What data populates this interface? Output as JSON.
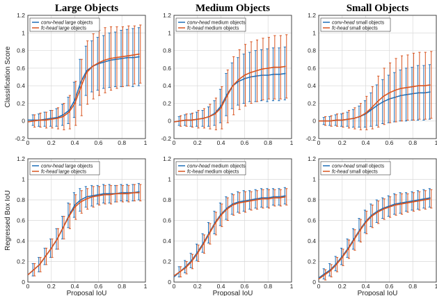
{
  "colors": {
    "conv": "#1f6fb8",
    "fc": "#d9541f"
  },
  "chart_data": [
    {
      "type": "line",
      "title": "Large Objects",
      "xlabel": "",
      "ylabel": "Classification Score",
      "xlim": [
        0,
        1
      ],
      "ylim": [
        -0.2,
        1.2
      ],
      "xticks": [
        "0",
        "0.2",
        "0.4",
        "0.6",
        "0.8",
        "1"
      ],
      "yticks": [
        "-0.2",
        "0",
        "0.2",
        "0.4",
        "0.6",
        "0.8",
        "1",
        "1.2"
      ],
      "legend": "top-left",
      "grid": true,
      "x": [
        0.05,
        0.1,
        0.15,
        0.2,
        0.25,
        0.3,
        0.35,
        0.4,
        0.45,
        0.5,
        0.55,
        0.6,
        0.65,
        0.7,
        0.75,
        0.8,
        0.85,
        0.9,
        0.95
      ],
      "series": [
        {
          "name": "conv-head",
          "desc": "large objects",
          "values": [
            0.01,
            0.01,
            0.02,
            0.03,
            0.04,
            0.07,
            0.12,
            0.24,
            0.44,
            0.57,
            0.62,
            0.65,
            0.67,
            0.69,
            0.7,
            0.71,
            0.72,
            0.72,
            0.73
          ],
          "err": [
            0.06,
            0.07,
            0.08,
            0.09,
            0.1,
            0.12,
            0.15,
            0.2,
            0.26,
            0.28,
            0.29,
            0.3,
            0.3,
            0.31,
            0.31,
            0.32,
            0.32,
            0.33,
            0.33
          ]
        },
        {
          "name": "fc-head",
          "desc": "large objects",
          "values": [
            0.0,
            0.01,
            0.01,
            0.02,
            0.03,
            0.05,
            0.1,
            0.2,
            0.38,
            0.55,
            0.62,
            0.66,
            0.69,
            0.71,
            0.72,
            0.73,
            0.74,
            0.75,
            0.76
          ],
          "err": [
            0.07,
            0.08,
            0.09,
            0.1,
            0.12,
            0.15,
            0.19,
            0.25,
            0.32,
            0.36,
            0.37,
            0.37,
            0.37,
            0.36,
            0.35,
            0.34,
            0.34,
            0.33,
            0.33
          ]
        }
      ]
    },
    {
      "type": "line",
      "title": "Medium Objects",
      "xlabel": "",
      "ylabel": "",
      "xlim": [
        0,
        1
      ],
      "ylim": [
        -0.2,
        1.2
      ],
      "xticks": [
        "0",
        "0.2",
        "0.4",
        "0.6",
        "0.8",
        "1"
      ],
      "yticks": [
        "-0.2",
        "0",
        "0.2",
        "0.4",
        "0.6",
        "0.8",
        "1",
        "1.2"
      ],
      "legend": "top-left",
      "grid": true,
      "x": [
        0.05,
        0.1,
        0.15,
        0.2,
        0.25,
        0.3,
        0.35,
        0.4,
        0.45,
        0.5,
        0.55,
        0.6,
        0.65,
        0.7,
        0.75,
        0.8,
        0.85,
        0.9,
        0.95
      ],
      "series": [
        {
          "name": "conv-head",
          "desc": "medium objects",
          "values": [
            0.0,
            0.01,
            0.01,
            0.02,
            0.03,
            0.05,
            0.09,
            0.17,
            0.3,
            0.4,
            0.45,
            0.48,
            0.5,
            0.51,
            0.52,
            0.52,
            0.53,
            0.53,
            0.54
          ],
          "err": [
            0.05,
            0.06,
            0.07,
            0.08,
            0.09,
            0.11,
            0.14,
            0.19,
            0.24,
            0.26,
            0.27,
            0.28,
            0.28,
            0.29,
            0.29,
            0.3,
            0.3,
            0.3,
            0.3
          ]
        },
        {
          "name": "fc-head",
          "desc": "medium objects",
          "values": [
            0.0,
            0.01,
            0.01,
            0.02,
            0.03,
            0.05,
            0.08,
            0.15,
            0.28,
            0.4,
            0.47,
            0.52,
            0.55,
            0.57,
            0.59,
            0.6,
            0.61,
            0.61,
            0.62
          ],
          "err": [
            0.06,
            0.07,
            0.08,
            0.1,
            0.11,
            0.14,
            0.18,
            0.24,
            0.3,
            0.33,
            0.34,
            0.35,
            0.35,
            0.35,
            0.35,
            0.35,
            0.36,
            0.36,
            0.36
          ]
        }
      ]
    },
    {
      "type": "line",
      "title": "Small Objects",
      "xlabel": "",
      "ylabel": "",
      "xlim": [
        0,
        1
      ],
      "ylim": [
        -0.2,
        1.2
      ],
      "xticks": [
        "0",
        "0.2",
        "0.4",
        "0.6",
        "0.8",
        "1"
      ],
      "yticks": [
        "-0.2",
        "0",
        "0.2",
        "0.4",
        "0.6",
        "0.8",
        "1",
        "1.2"
      ],
      "legend": "top-left",
      "grid": true,
      "x": [
        0.05,
        0.1,
        0.15,
        0.2,
        0.25,
        0.3,
        0.35,
        0.4,
        0.45,
        0.5,
        0.55,
        0.6,
        0.65,
        0.7,
        0.75,
        0.8,
        0.85,
        0.9,
        0.95
      ],
      "series": [
        {
          "name": "conv-head",
          "desc": "small objects",
          "values": [
            0.0,
            0.0,
            0.01,
            0.01,
            0.02,
            0.03,
            0.05,
            0.08,
            0.13,
            0.18,
            0.22,
            0.25,
            0.27,
            0.29,
            0.3,
            0.31,
            0.32,
            0.32,
            0.33
          ],
          "err": [
            0.04,
            0.05,
            0.06,
            0.07,
            0.08,
            0.1,
            0.12,
            0.15,
            0.19,
            0.23,
            0.25,
            0.27,
            0.28,
            0.29,
            0.3,
            0.3,
            0.31,
            0.31,
            0.31
          ]
        },
        {
          "name": "fc-head",
          "desc": "small objects",
          "values": [
            0.0,
            0.0,
            0.01,
            0.01,
            0.02,
            0.03,
            0.05,
            0.09,
            0.15,
            0.22,
            0.28,
            0.32,
            0.35,
            0.37,
            0.38,
            0.39,
            0.4,
            0.4,
            0.41
          ],
          "err": [
            0.05,
            0.06,
            0.07,
            0.08,
            0.1,
            0.12,
            0.15,
            0.19,
            0.24,
            0.29,
            0.32,
            0.34,
            0.36,
            0.37,
            0.37,
            0.38,
            0.38,
            0.38,
            0.38
          ]
        }
      ]
    },
    {
      "type": "line",
      "title": "",
      "xlabel": "Proposal IoU",
      "ylabel": "Regressed Box IoU",
      "xlim": [
        0,
        1
      ],
      "ylim": [
        0,
        1.2
      ],
      "xticks": [
        "0",
        "0.2",
        "0.4",
        "0.6",
        "0.8",
        "1"
      ],
      "yticks": [
        "0",
        "0.2",
        "0.4",
        "0.6",
        "0.8",
        "1",
        "1.2"
      ],
      "legend": "top-left",
      "grid": true,
      "x": [
        0.05,
        0.1,
        0.15,
        0.2,
        0.25,
        0.3,
        0.35,
        0.4,
        0.45,
        0.5,
        0.55,
        0.6,
        0.65,
        0.7,
        0.75,
        0.8,
        0.85,
        0.9,
        0.95
      ],
      "series": [
        {
          "name": "conv-head",
          "desc": "large objects",
          "values": [
            0.12,
            0.17,
            0.25,
            0.33,
            0.42,
            0.53,
            0.65,
            0.75,
            0.8,
            0.83,
            0.84,
            0.85,
            0.86,
            0.86,
            0.86,
            0.87,
            0.87,
            0.87,
            0.88
          ],
          "err": [
            0.06,
            0.07,
            0.08,
            0.09,
            0.1,
            0.11,
            0.12,
            0.12,
            0.11,
            0.1,
            0.1,
            0.09,
            0.09,
            0.09,
            0.08,
            0.08,
            0.08,
            0.08,
            0.08
          ]
        },
        {
          "name": "fc-head",
          "desc": "large objects",
          "values": [
            0.12,
            0.17,
            0.25,
            0.33,
            0.42,
            0.53,
            0.64,
            0.73,
            0.78,
            0.81,
            0.83,
            0.84,
            0.85,
            0.85,
            0.86,
            0.86,
            0.86,
            0.87,
            0.87
          ],
          "err": [
            0.06,
            0.07,
            0.08,
            0.09,
            0.1,
            0.11,
            0.12,
            0.12,
            0.11,
            0.1,
            0.1,
            0.09,
            0.09,
            0.09,
            0.08,
            0.08,
            0.08,
            0.08,
            0.08
          ]
        }
      ]
    },
    {
      "type": "line",
      "title": "",
      "xlabel": "Proposal IoU",
      "ylabel": "",
      "xlim": [
        0,
        1
      ],
      "ylim": [
        0,
        1.2
      ],
      "xticks": [
        "0",
        "0.2",
        "0.4",
        "0.6",
        "0.8",
        "1"
      ],
      "yticks": [
        "0",
        "0.2",
        "0.4",
        "0.6",
        "0.8",
        "1",
        "1.2"
      ],
      "legend": "top-left",
      "grid": true,
      "x": [
        0.05,
        0.1,
        0.15,
        0.2,
        0.25,
        0.3,
        0.35,
        0.4,
        0.45,
        0.5,
        0.55,
        0.6,
        0.65,
        0.7,
        0.75,
        0.8,
        0.85,
        0.9,
        0.95
      ],
      "series": [
        {
          "name": "conv-head",
          "desc": "medium objects",
          "values": [
            0.1,
            0.15,
            0.21,
            0.29,
            0.38,
            0.48,
            0.58,
            0.66,
            0.72,
            0.76,
            0.78,
            0.79,
            0.8,
            0.81,
            0.82,
            0.82,
            0.83,
            0.83,
            0.84
          ],
          "err": [
            0.05,
            0.06,
            0.07,
            0.08,
            0.09,
            0.1,
            0.11,
            0.11,
            0.11,
            0.1,
            0.1,
            0.1,
            0.09,
            0.09,
            0.09,
            0.09,
            0.08,
            0.08,
            0.08
          ]
        },
        {
          "name": "fc-head",
          "desc": "medium objects",
          "values": [
            0.1,
            0.14,
            0.2,
            0.28,
            0.37,
            0.47,
            0.57,
            0.65,
            0.71,
            0.75,
            0.77,
            0.78,
            0.79,
            0.8,
            0.81,
            0.81,
            0.82,
            0.82,
            0.83
          ],
          "err": [
            0.05,
            0.06,
            0.07,
            0.08,
            0.09,
            0.1,
            0.11,
            0.11,
            0.11,
            0.1,
            0.1,
            0.1,
            0.09,
            0.09,
            0.09,
            0.09,
            0.08,
            0.08,
            0.08
          ]
        }
      ]
    },
    {
      "type": "line",
      "title": "",
      "xlabel": "Proposal IoU",
      "ylabel": "",
      "xlim": [
        0,
        1
      ],
      "ylim": [
        0,
        1.2
      ],
      "xticks": [
        "0",
        "0.2",
        "0.4",
        "0.6",
        "0.8",
        "1"
      ],
      "yticks": [
        "0",
        "0.2",
        "0.4",
        "0.6",
        "0.8",
        "1",
        "1.2"
      ],
      "legend": "top-left",
      "grid": true,
      "x": [
        0.05,
        0.1,
        0.15,
        0.2,
        0.25,
        0.3,
        0.35,
        0.4,
        0.45,
        0.5,
        0.55,
        0.6,
        0.65,
        0.7,
        0.75,
        0.8,
        0.85,
        0.9,
        0.95
      ],
      "series": [
        {
          "name": "conv-head",
          "desc": "small objects",
          "values": [
            0.08,
            0.12,
            0.18,
            0.25,
            0.33,
            0.42,
            0.51,
            0.59,
            0.65,
            0.69,
            0.72,
            0.74,
            0.76,
            0.77,
            0.78,
            0.79,
            0.8,
            0.81,
            0.82
          ],
          "err": [
            0.05,
            0.06,
            0.07,
            0.08,
            0.09,
            0.1,
            0.11,
            0.11,
            0.11,
            0.11,
            0.1,
            0.1,
            0.1,
            0.1,
            0.09,
            0.09,
            0.09,
            0.09,
            0.09
          ]
        },
        {
          "name": "fc-head",
          "desc": "small objects",
          "values": [
            0.07,
            0.11,
            0.17,
            0.24,
            0.32,
            0.41,
            0.5,
            0.58,
            0.64,
            0.68,
            0.71,
            0.73,
            0.75,
            0.76,
            0.77,
            0.78,
            0.79,
            0.8,
            0.81
          ],
          "err": [
            0.05,
            0.06,
            0.07,
            0.08,
            0.09,
            0.1,
            0.11,
            0.11,
            0.11,
            0.11,
            0.1,
            0.1,
            0.1,
            0.1,
            0.09,
            0.09,
            0.09,
            0.09,
            0.09
          ]
        }
      ]
    }
  ]
}
